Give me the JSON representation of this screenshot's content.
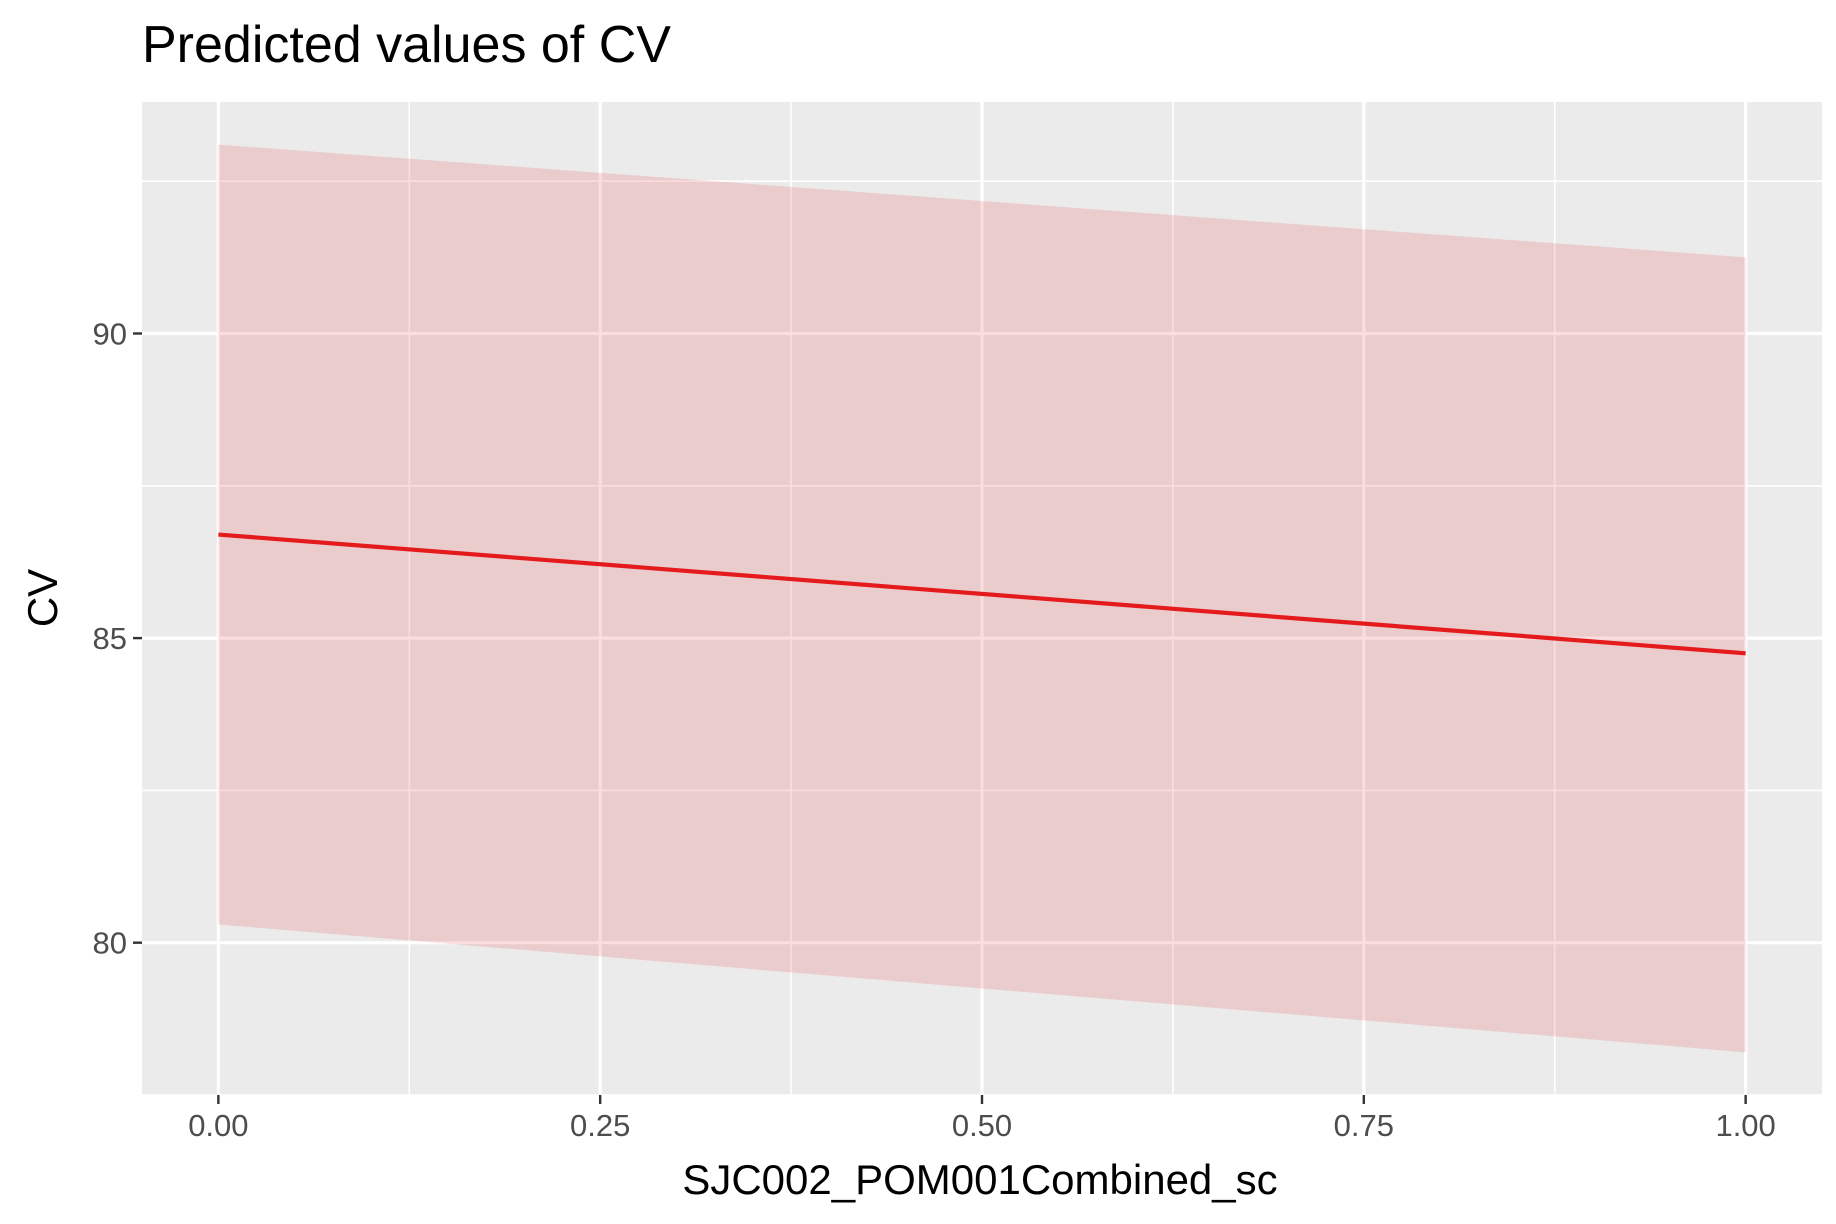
{
  "chart_data": {
    "type": "line",
    "title": "Predicted values of CV",
    "xlabel": "SJC002_POM001Combined_sc",
    "ylabel": "CV",
    "x_ticks": [
      {
        "value": 0.0,
        "label": "0.00"
      },
      {
        "value": 0.25,
        "label": "0.25"
      },
      {
        "value": 0.5,
        "label": "0.50"
      },
      {
        "value": 0.75,
        "label": "0.75"
      },
      {
        "value": 1.0,
        "label": "1.00"
      }
    ],
    "y_ticks": [
      {
        "value": 80,
        "label": "80"
      },
      {
        "value": 85,
        "label": "85"
      },
      {
        "value": 90,
        "label": "90"
      }
    ],
    "xlim": [
      -0.05,
      1.05
    ],
    "ylim": [
      77.5,
      93.8
    ],
    "grid": true,
    "legend": "none",
    "series": [
      {
        "x": [
          0.0,
          1.0
        ],
        "values": [
          86.7,
          84.75
        ],
        "ci_lower": [
          80.3,
          78.2
        ],
        "ci_upper": [
          93.1,
          91.25
        ]
      }
    ],
    "colors": {
      "line": "#e41a1c",
      "ribbon": "#e41a1c",
      "panel_background": "#ebebeb",
      "grid": "#ffffff"
    }
  }
}
